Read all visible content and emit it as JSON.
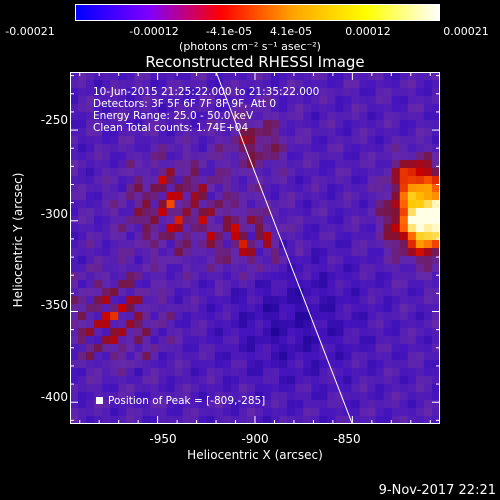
{
  "colorbar": {
    "tick_labels": [
      "-0.00021",
      "-0.00012",
      "-4.1e-05",
      "4.1e-05",
      "0.00012",
      "0.00021"
    ],
    "tick_values": [
      -0.00021,
      -0.00012,
      -4.1e-05,
      4.1e-05,
      0.00012,
      0.00021
    ],
    "units": "(photons cm⁻² s⁻¹ asec⁻²)",
    "vmin": -0.00021,
    "vmax": 0.00021,
    "colors": [
      "#0000ff",
      "#7f00ff",
      "#ff0000",
      "#ffa500",
      "#ffff00",
      "#ffffff"
    ]
  },
  "chart_data": {
    "type": "heatmap",
    "title": "Reconstructed RHESSI Image",
    "xlabel": "Heliocentric X (arcsec)",
    "ylabel": "Heliocentric Y (arcsec)",
    "xlim": [
      -995,
      -805
    ],
    "ylim": [
      -412,
      -218
    ],
    "x_ticks": [
      -950,
      -900,
      -850
    ],
    "x_tick_labels": [
      "-950",
      "-900",
      "-850"
    ],
    "y_ticks": [
      -250,
      -300,
      -350,
      -400
    ],
    "y_tick_labels": [
      "-250",
      "-300",
      "-350",
      "-400"
    ],
    "limb_line": {
      "x": [
        -920,
        -850
      ],
      "y": [
        -218,
        -412
      ]
    },
    "peak": {
      "x": -809,
      "y": -285
    },
    "annotations": [
      "10-Jun-2015 21:25:22.000 to 21:35:22.000",
      "Detectors: 3F 5F 6F 7F 8F 9F, Att 0",
      "Energy Range: 25.0 - 50.0 keV",
      "Clean     Total counts: 1.74E+04"
    ],
    "peak_label": "Position of Peak = [-809,-285]"
  },
  "footer": {
    "timestamp": "9-Nov-2017 22:21"
  }
}
